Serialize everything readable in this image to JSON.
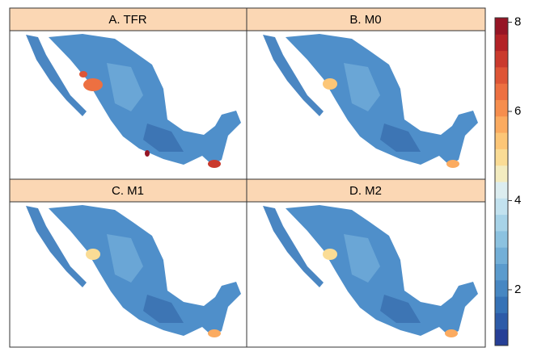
{
  "panels": [
    {
      "title": "A. TFR"
    },
    {
      "title": "B. M0"
    },
    {
      "title": "C. M1"
    },
    {
      "title": "D. M2"
    }
  ],
  "colorbar": {
    "lim": [
      0.75,
      8.1
    ],
    "ticks": [
      2,
      4,
      6,
      8
    ],
    "colors": [
      "#263f96",
      "#2d5ba8",
      "#3672b6",
      "#4787c2",
      "#5b9bcd",
      "#73afd7",
      "#8cc2e0",
      "#a7d3e8",
      "#c2e2ef",
      "#dcedf0",
      "#f3ecc0",
      "#fadc95",
      "#fcc677",
      "#fbab60",
      "#f68e4e",
      "#ed7041",
      "#de5536",
      "#ca3a2d",
      "#b32226",
      "#961525"
    ]
  }
}
